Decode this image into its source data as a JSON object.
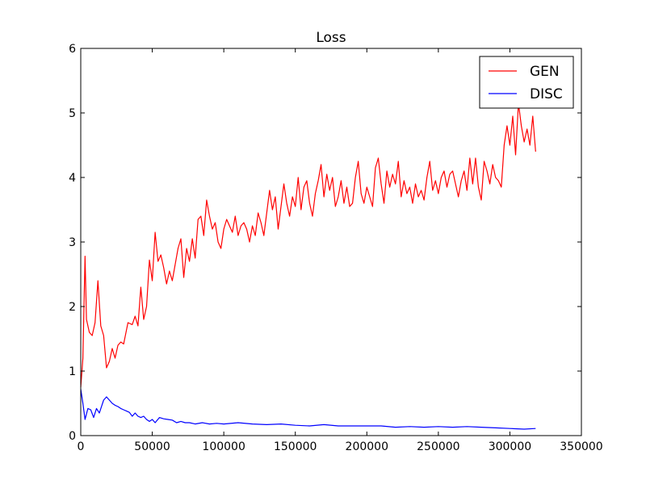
{
  "chart_data": {
    "type": "line",
    "title": "Loss",
    "xlabel": "",
    "ylabel": "",
    "xlim": [
      0,
      350000
    ],
    "ylim": [
      0,
      6
    ],
    "xticks": [
      0,
      50000,
      100000,
      150000,
      200000,
      250000,
      300000,
      350000
    ],
    "xtick_labels": [
      "0",
      "50000",
      "100000",
      "150000",
      "200000",
      "250000",
      "300000",
      "350000"
    ],
    "yticks": [
      0,
      1,
      2,
      3,
      4,
      5,
      6
    ],
    "ytick_labels": [
      "0",
      "1",
      "2",
      "3",
      "4",
      "5",
      "6"
    ],
    "grid": false,
    "legend_position": "top-right",
    "series": [
      {
        "name": "GEN",
        "color": "#ff0000",
        "points": [
          [
            0,
            0.75
          ],
          [
            1500,
            1.2
          ],
          [
            3000,
            2.78
          ],
          [
            4000,
            1.8
          ],
          [
            6000,
            1.6
          ],
          [
            8000,
            1.55
          ],
          [
            10000,
            1.75
          ],
          [
            12000,
            2.4
          ],
          [
            14000,
            1.7
          ],
          [
            16000,
            1.55
          ],
          [
            18000,
            1.05
          ],
          [
            20000,
            1.15
          ],
          [
            22000,
            1.35
          ],
          [
            24000,
            1.2
          ],
          [
            26000,
            1.4
          ],
          [
            28000,
            1.45
          ],
          [
            30000,
            1.42
          ],
          [
            33000,
            1.75
          ],
          [
            36000,
            1.72
          ],
          [
            38000,
            1.85
          ],
          [
            40000,
            1.7
          ],
          [
            42000,
            2.3
          ],
          [
            44000,
            1.8
          ],
          [
            46000,
            2.0
          ],
          [
            48000,
            2.72
          ],
          [
            50000,
            2.4
          ],
          [
            52000,
            3.15
          ],
          [
            54000,
            2.7
          ],
          [
            56000,
            2.8
          ],
          [
            58000,
            2.6
          ],
          [
            60000,
            2.35
          ],
          [
            62000,
            2.55
          ],
          [
            64000,
            2.4
          ],
          [
            66000,
            2.65
          ],
          [
            68000,
            2.9
          ],
          [
            70000,
            3.05
          ],
          [
            72000,
            2.45
          ],
          [
            74000,
            2.9
          ],
          [
            76000,
            2.7
          ],
          [
            78000,
            3.05
          ],
          [
            80000,
            2.75
          ],
          [
            82000,
            3.35
          ],
          [
            84000,
            3.4
          ],
          [
            86000,
            3.1
          ],
          [
            88000,
            3.65
          ],
          [
            90000,
            3.4
          ],
          [
            92000,
            3.2
          ],
          [
            94000,
            3.3
          ],
          [
            96000,
            3.0
          ],
          [
            98000,
            2.9
          ],
          [
            100000,
            3.2
          ],
          [
            102000,
            3.35
          ],
          [
            104000,
            3.25
          ],
          [
            106000,
            3.15
          ],
          [
            108000,
            3.4
          ],
          [
            110000,
            3.1
          ],
          [
            112000,
            3.25
          ],
          [
            114000,
            3.3
          ],
          [
            116000,
            3.2
          ],
          [
            118000,
            3.0
          ],
          [
            120000,
            3.25
          ],
          [
            122000,
            3.1
          ],
          [
            124000,
            3.45
          ],
          [
            126000,
            3.3
          ],
          [
            128000,
            3.1
          ],
          [
            130000,
            3.45
          ],
          [
            132000,
            3.8
          ],
          [
            134000,
            3.5
          ],
          [
            136000,
            3.7
          ],
          [
            138000,
            3.2
          ],
          [
            140000,
            3.55
          ],
          [
            142000,
            3.9
          ],
          [
            144000,
            3.6
          ],
          [
            146000,
            3.4
          ],
          [
            148000,
            3.7
          ],
          [
            150000,
            3.55
          ],
          [
            152000,
            4.0
          ],
          [
            154000,
            3.5
          ],
          [
            156000,
            3.85
          ],
          [
            158000,
            3.95
          ],
          [
            160000,
            3.6
          ],
          [
            162000,
            3.4
          ],
          [
            164000,
            3.75
          ],
          [
            166000,
            3.95
          ],
          [
            168000,
            4.2
          ],
          [
            170000,
            3.7
          ],
          [
            172000,
            4.05
          ],
          [
            174000,
            3.8
          ],
          [
            176000,
            4.0
          ],
          [
            178000,
            3.55
          ],
          [
            180000,
            3.7
          ],
          [
            182000,
            3.95
          ],
          [
            184000,
            3.6
          ],
          [
            186000,
            3.85
          ],
          [
            188000,
            3.55
          ],
          [
            190000,
            3.6
          ],
          [
            192000,
            4.0
          ],
          [
            194000,
            4.25
          ],
          [
            196000,
            3.75
          ],
          [
            198000,
            3.6
          ],
          [
            200000,
            3.85
          ],
          [
            202000,
            3.7
          ],
          [
            204000,
            3.55
          ],
          [
            206000,
            4.15
          ],
          [
            208000,
            4.3
          ],
          [
            210000,
            3.9
          ],
          [
            212000,
            3.6
          ],
          [
            214000,
            4.1
          ],
          [
            216000,
            3.85
          ],
          [
            218000,
            4.05
          ],
          [
            220000,
            3.9
          ],
          [
            222000,
            4.25
          ],
          [
            224000,
            3.7
          ],
          [
            226000,
            3.95
          ],
          [
            228000,
            3.75
          ],
          [
            230000,
            3.85
          ],
          [
            232000,
            3.6
          ],
          [
            234000,
            3.9
          ],
          [
            236000,
            3.7
          ],
          [
            238000,
            3.8
          ],
          [
            240000,
            3.65
          ],
          [
            242000,
            4.0
          ],
          [
            244000,
            4.25
          ],
          [
            246000,
            3.8
          ],
          [
            248000,
            3.95
          ],
          [
            250000,
            3.75
          ],
          [
            252000,
            4.0
          ],
          [
            254000,
            4.1
          ],
          [
            256000,
            3.85
          ],
          [
            258000,
            4.05
          ],
          [
            260000,
            4.1
          ],
          [
            262000,
            3.9
          ],
          [
            264000,
            3.7
          ],
          [
            266000,
            3.95
          ],
          [
            268000,
            4.1
          ],
          [
            270000,
            3.8
          ],
          [
            272000,
            4.3
          ],
          [
            274000,
            3.9
          ],
          [
            276000,
            4.3
          ],
          [
            278000,
            3.85
          ],
          [
            280000,
            3.65
          ],
          [
            282000,
            4.25
          ],
          [
            284000,
            4.1
          ],
          [
            286000,
            3.9
          ],
          [
            288000,
            4.2
          ],
          [
            290000,
            4.0
          ],
          [
            292000,
            3.95
          ],
          [
            294000,
            3.85
          ],
          [
            296000,
            4.5
          ],
          [
            298000,
            4.8
          ],
          [
            300000,
            4.5
          ],
          [
            302000,
            4.95
          ],
          [
            304000,
            4.35
          ],
          [
            306000,
            5.15
          ],
          [
            308000,
            4.8
          ],
          [
            310000,
            4.55
          ],
          [
            312000,
            4.75
          ],
          [
            314000,
            4.5
          ],
          [
            316000,
            4.95
          ],
          [
            318000,
            4.4
          ]
        ]
      },
      {
        "name": "DISC",
        "color": "#0000ff",
        "points": [
          [
            0,
            0.72
          ],
          [
            1500,
            0.5
          ],
          [
            3000,
            0.25
          ],
          [
            5000,
            0.42
          ],
          [
            7000,
            0.4
          ],
          [
            9000,
            0.28
          ],
          [
            11000,
            0.42
          ],
          [
            13000,
            0.35
          ],
          [
            16000,
            0.55
          ],
          [
            18000,
            0.6
          ],
          [
            20000,
            0.55
          ],
          [
            22000,
            0.5
          ],
          [
            24000,
            0.47
          ],
          [
            26000,
            0.45
          ],
          [
            28000,
            0.42
          ],
          [
            30000,
            0.4
          ],
          [
            32000,
            0.38
          ],
          [
            34000,
            0.36
          ],
          [
            36000,
            0.3
          ],
          [
            38000,
            0.35
          ],
          [
            40000,
            0.3
          ],
          [
            42000,
            0.28
          ],
          [
            44000,
            0.3
          ],
          [
            46000,
            0.25
          ],
          [
            48000,
            0.22
          ],
          [
            50000,
            0.25
          ],
          [
            52000,
            0.2
          ],
          [
            55000,
            0.28
          ],
          [
            58000,
            0.26
          ],
          [
            61000,
            0.25
          ],
          [
            64000,
            0.24
          ],
          [
            67000,
            0.2
          ],
          [
            70000,
            0.22
          ],
          [
            73000,
            0.2
          ],
          [
            76000,
            0.2
          ],
          [
            80000,
            0.18
          ],
          [
            85000,
            0.2
          ],
          [
            90000,
            0.18
          ],
          [
            95000,
            0.19
          ],
          [
            100000,
            0.18
          ],
          [
            110000,
            0.2
          ],
          [
            120000,
            0.18
          ],
          [
            130000,
            0.17
          ],
          [
            140000,
            0.18
          ],
          [
            150000,
            0.16
          ],
          [
            160000,
            0.15
          ],
          [
            170000,
            0.17
          ],
          [
            180000,
            0.15
          ],
          [
            190000,
            0.15
          ],
          [
            200000,
            0.15
          ],
          [
            210000,
            0.15
          ],
          [
            220000,
            0.13
          ],
          [
            230000,
            0.14
          ],
          [
            240000,
            0.13
          ],
          [
            250000,
            0.14
          ],
          [
            260000,
            0.13
          ],
          [
            270000,
            0.14
          ],
          [
            280000,
            0.13
          ],
          [
            290000,
            0.12
          ],
          [
            300000,
            0.11
          ],
          [
            310000,
            0.1
          ],
          [
            318000,
            0.11
          ]
        ]
      }
    ]
  }
}
